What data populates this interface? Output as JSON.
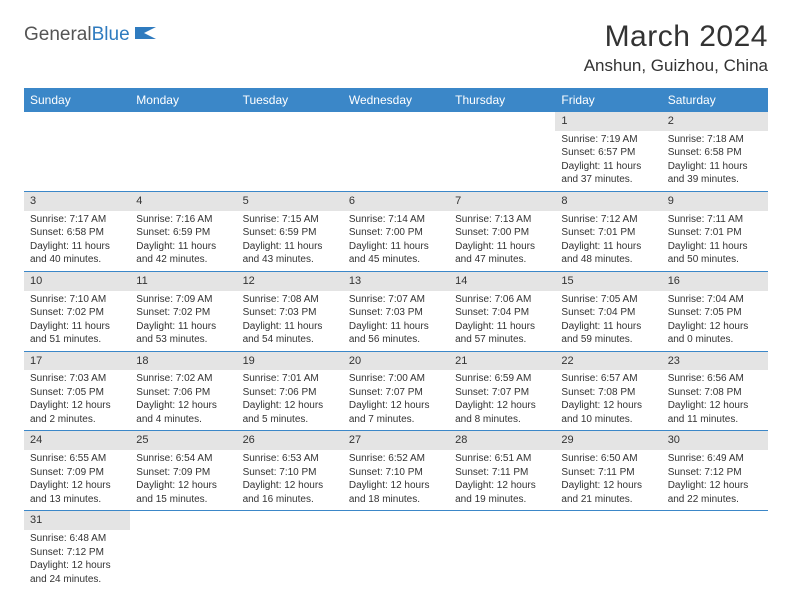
{
  "logo": {
    "part1": "General",
    "part2": "Blue"
  },
  "header": {
    "title": "March 2024",
    "location": "Anshun, Guizhou, China"
  },
  "colors": {
    "header_bg": "#3b87c8",
    "header_text": "#ffffff",
    "daynum_bg": "#e4e4e4",
    "cell_border": "#3b87c8",
    "text": "#333333",
    "logo_blue": "#2f7bbf"
  },
  "weekdays": [
    "Sunday",
    "Monday",
    "Tuesday",
    "Wednesday",
    "Thursday",
    "Friday",
    "Saturday"
  ],
  "weeks": [
    [
      null,
      null,
      null,
      null,
      null,
      {
        "n": "1",
        "sunrise": "Sunrise: 7:19 AM",
        "sunset": "Sunset: 6:57 PM",
        "daylight": "Daylight: 11 hours and 37 minutes."
      },
      {
        "n": "2",
        "sunrise": "Sunrise: 7:18 AM",
        "sunset": "Sunset: 6:58 PM",
        "daylight": "Daylight: 11 hours and 39 minutes."
      }
    ],
    [
      {
        "n": "3",
        "sunrise": "Sunrise: 7:17 AM",
        "sunset": "Sunset: 6:58 PM",
        "daylight": "Daylight: 11 hours and 40 minutes."
      },
      {
        "n": "4",
        "sunrise": "Sunrise: 7:16 AM",
        "sunset": "Sunset: 6:59 PM",
        "daylight": "Daylight: 11 hours and 42 minutes."
      },
      {
        "n": "5",
        "sunrise": "Sunrise: 7:15 AM",
        "sunset": "Sunset: 6:59 PM",
        "daylight": "Daylight: 11 hours and 43 minutes."
      },
      {
        "n": "6",
        "sunrise": "Sunrise: 7:14 AM",
        "sunset": "Sunset: 7:00 PM",
        "daylight": "Daylight: 11 hours and 45 minutes."
      },
      {
        "n": "7",
        "sunrise": "Sunrise: 7:13 AM",
        "sunset": "Sunset: 7:00 PM",
        "daylight": "Daylight: 11 hours and 47 minutes."
      },
      {
        "n": "8",
        "sunrise": "Sunrise: 7:12 AM",
        "sunset": "Sunset: 7:01 PM",
        "daylight": "Daylight: 11 hours and 48 minutes."
      },
      {
        "n": "9",
        "sunrise": "Sunrise: 7:11 AM",
        "sunset": "Sunset: 7:01 PM",
        "daylight": "Daylight: 11 hours and 50 minutes."
      }
    ],
    [
      {
        "n": "10",
        "sunrise": "Sunrise: 7:10 AM",
        "sunset": "Sunset: 7:02 PM",
        "daylight": "Daylight: 11 hours and 51 minutes."
      },
      {
        "n": "11",
        "sunrise": "Sunrise: 7:09 AM",
        "sunset": "Sunset: 7:02 PM",
        "daylight": "Daylight: 11 hours and 53 minutes."
      },
      {
        "n": "12",
        "sunrise": "Sunrise: 7:08 AM",
        "sunset": "Sunset: 7:03 PM",
        "daylight": "Daylight: 11 hours and 54 minutes."
      },
      {
        "n": "13",
        "sunrise": "Sunrise: 7:07 AM",
        "sunset": "Sunset: 7:03 PM",
        "daylight": "Daylight: 11 hours and 56 minutes."
      },
      {
        "n": "14",
        "sunrise": "Sunrise: 7:06 AM",
        "sunset": "Sunset: 7:04 PM",
        "daylight": "Daylight: 11 hours and 57 minutes."
      },
      {
        "n": "15",
        "sunrise": "Sunrise: 7:05 AM",
        "sunset": "Sunset: 7:04 PM",
        "daylight": "Daylight: 11 hours and 59 minutes."
      },
      {
        "n": "16",
        "sunrise": "Sunrise: 7:04 AM",
        "sunset": "Sunset: 7:05 PM",
        "daylight": "Daylight: 12 hours and 0 minutes."
      }
    ],
    [
      {
        "n": "17",
        "sunrise": "Sunrise: 7:03 AM",
        "sunset": "Sunset: 7:05 PM",
        "daylight": "Daylight: 12 hours and 2 minutes."
      },
      {
        "n": "18",
        "sunrise": "Sunrise: 7:02 AM",
        "sunset": "Sunset: 7:06 PM",
        "daylight": "Daylight: 12 hours and 4 minutes."
      },
      {
        "n": "19",
        "sunrise": "Sunrise: 7:01 AM",
        "sunset": "Sunset: 7:06 PM",
        "daylight": "Daylight: 12 hours and 5 minutes."
      },
      {
        "n": "20",
        "sunrise": "Sunrise: 7:00 AM",
        "sunset": "Sunset: 7:07 PM",
        "daylight": "Daylight: 12 hours and 7 minutes."
      },
      {
        "n": "21",
        "sunrise": "Sunrise: 6:59 AM",
        "sunset": "Sunset: 7:07 PM",
        "daylight": "Daylight: 12 hours and 8 minutes."
      },
      {
        "n": "22",
        "sunrise": "Sunrise: 6:57 AM",
        "sunset": "Sunset: 7:08 PM",
        "daylight": "Daylight: 12 hours and 10 minutes."
      },
      {
        "n": "23",
        "sunrise": "Sunrise: 6:56 AM",
        "sunset": "Sunset: 7:08 PM",
        "daylight": "Daylight: 12 hours and 11 minutes."
      }
    ],
    [
      {
        "n": "24",
        "sunrise": "Sunrise: 6:55 AM",
        "sunset": "Sunset: 7:09 PM",
        "daylight": "Daylight: 12 hours and 13 minutes."
      },
      {
        "n": "25",
        "sunrise": "Sunrise: 6:54 AM",
        "sunset": "Sunset: 7:09 PM",
        "daylight": "Daylight: 12 hours and 15 minutes."
      },
      {
        "n": "26",
        "sunrise": "Sunrise: 6:53 AM",
        "sunset": "Sunset: 7:10 PM",
        "daylight": "Daylight: 12 hours and 16 minutes."
      },
      {
        "n": "27",
        "sunrise": "Sunrise: 6:52 AM",
        "sunset": "Sunset: 7:10 PM",
        "daylight": "Daylight: 12 hours and 18 minutes."
      },
      {
        "n": "28",
        "sunrise": "Sunrise: 6:51 AM",
        "sunset": "Sunset: 7:11 PM",
        "daylight": "Daylight: 12 hours and 19 minutes."
      },
      {
        "n": "29",
        "sunrise": "Sunrise: 6:50 AM",
        "sunset": "Sunset: 7:11 PM",
        "daylight": "Daylight: 12 hours and 21 minutes."
      },
      {
        "n": "30",
        "sunrise": "Sunrise: 6:49 AM",
        "sunset": "Sunset: 7:12 PM",
        "daylight": "Daylight: 12 hours and 22 minutes."
      }
    ],
    [
      {
        "n": "31",
        "sunrise": "Sunrise: 6:48 AM",
        "sunset": "Sunset: 7:12 PM",
        "daylight": "Daylight: 12 hours and 24 minutes."
      },
      null,
      null,
      null,
      null,
      null,
      null
    ]
  ]
}
